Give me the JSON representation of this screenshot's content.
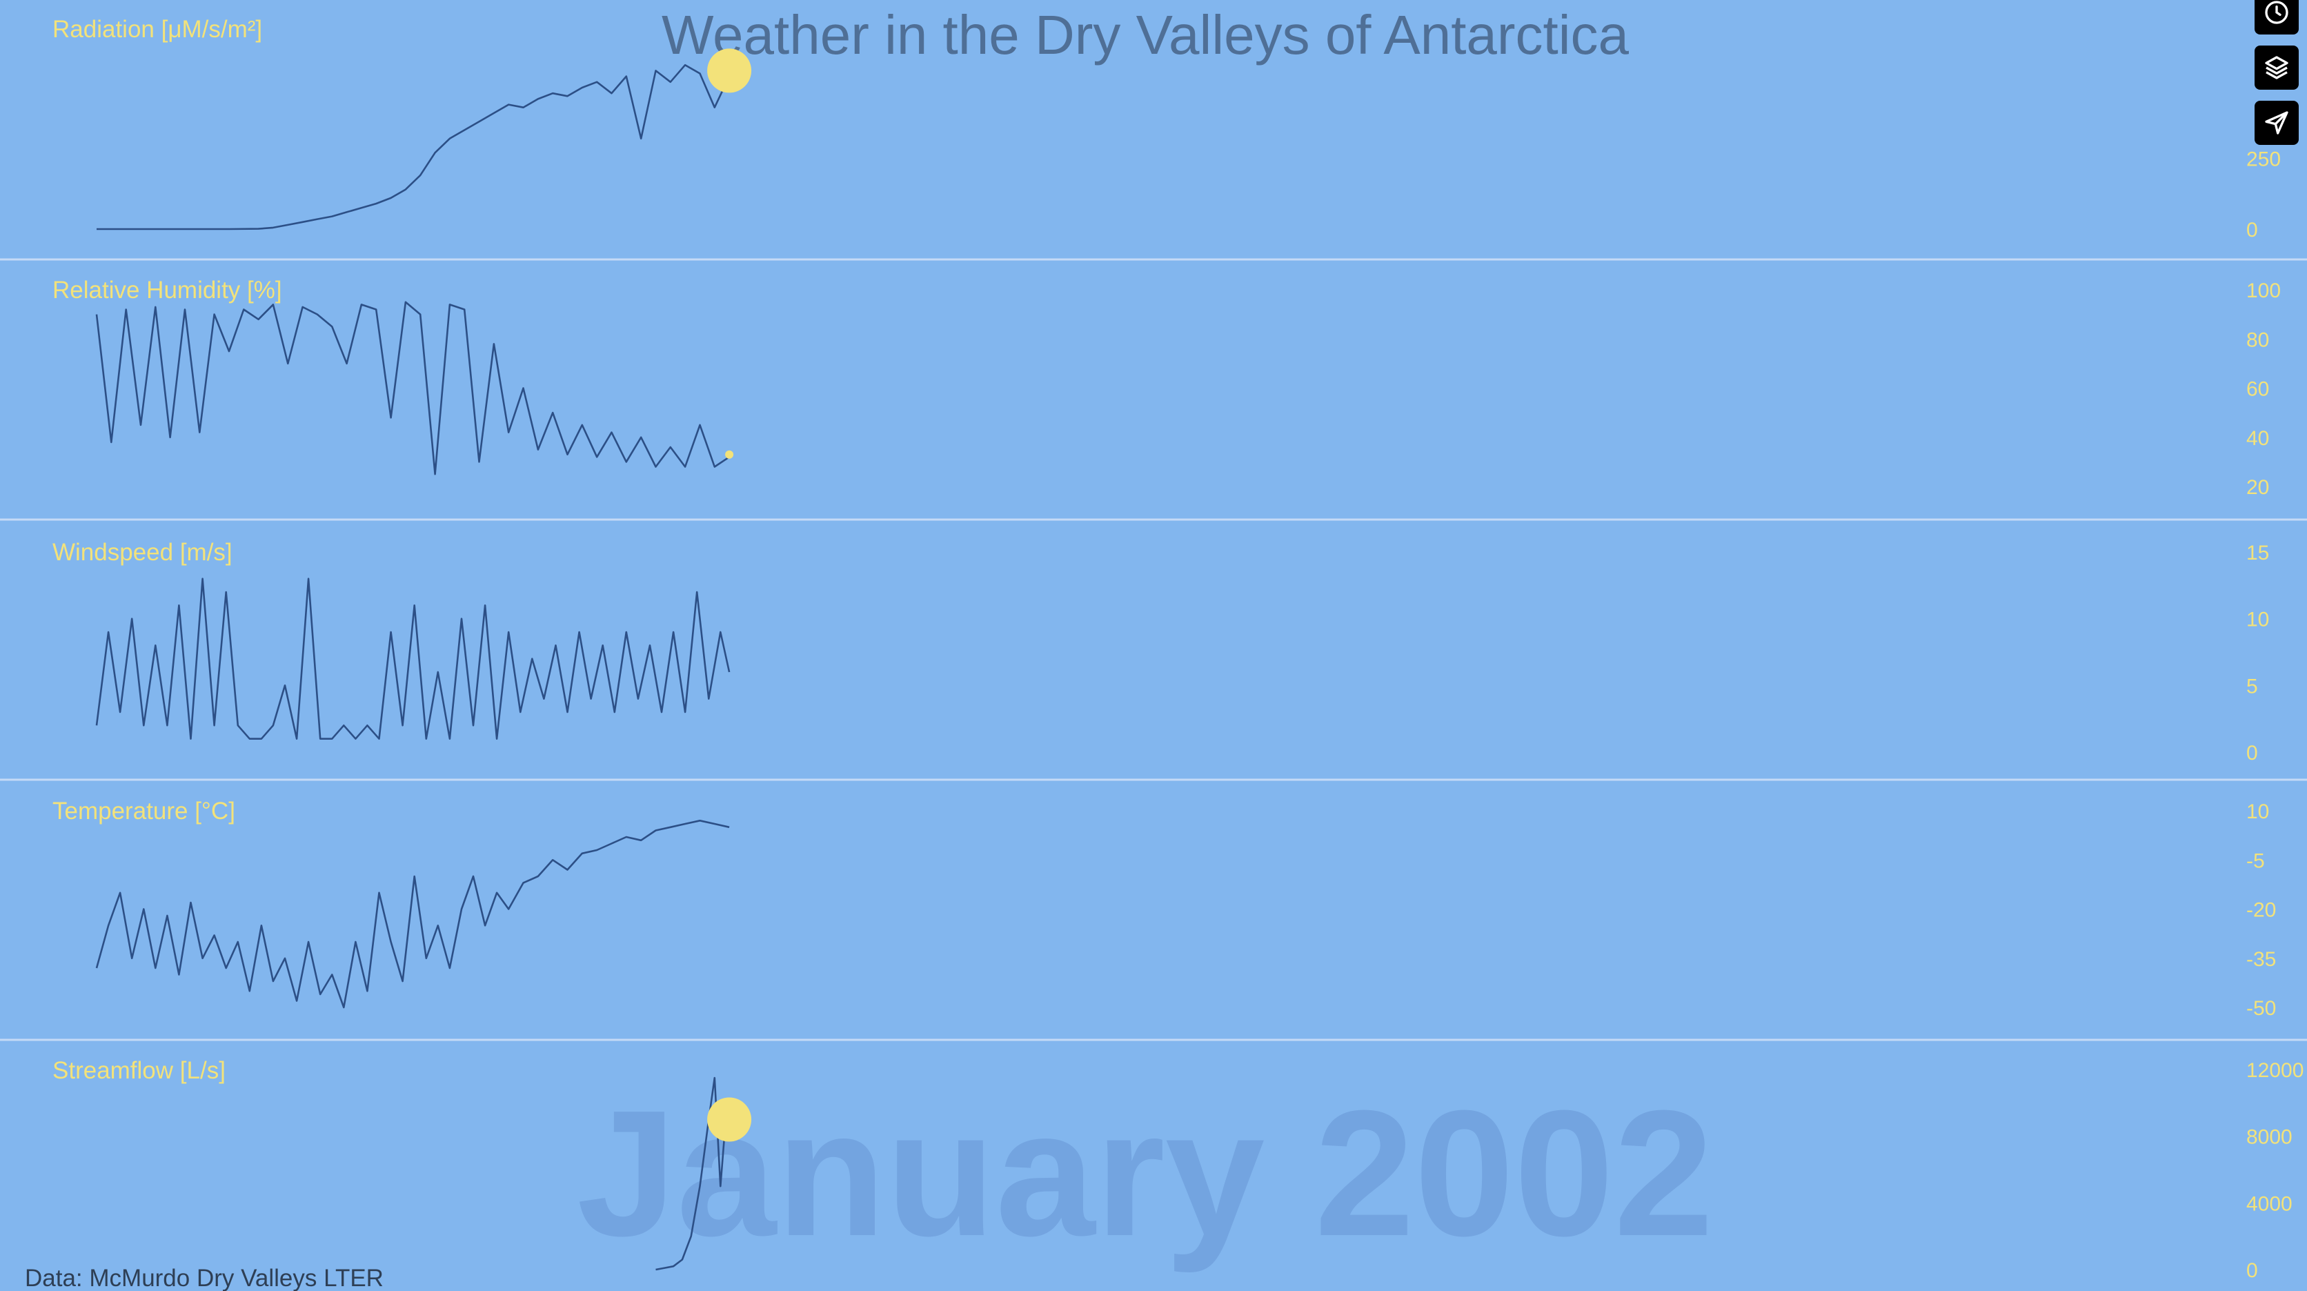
{
  "title": "Weather in the Dry Valleys of Antarctica",
  "current_period": "January 2002",
  "credit": "Data: McMurdo Dry Valleys LTER",
  "colors": {
    "background": "#82b6ee",
    "line": "#2c4f86",
    "accent": "#f3e27a",
    "title": "#4f6f96"
  },
  "controls": [
    {
      "name": "clock-icon"
    },
    {
      "name": "layers-icon"
    },
    {
      "name": "share-icon"
    }
  ],
  "chart_data": [
    {
      "type": "line",
      "title": "Radiation [μM/s/m²]",
      "yticks": [
        0,
        250
      ],
      "ylim": [
        0,
        600
      ],
      "x": [
        0,
        30,
        60,
        90,
        110,
        120,
        130,
        140,
        150,
        160,
        170,
        180,
        190,
        200,
        210,
        220,
        230,
        240,
        250,
        260,
        270,
        280,
        290,
        300,
        310,
        320,
        330,
        340,
        350,
        360,
        370,
        380,
        390,
        400,
        410,
        420,
        430
      ],
      "values": [
        0,
        0,
        0,
        0,
        1,
        5,
        15,
        25,
        35,
        45,
        60,
        75,
        90,
        110,
        140,
        190,
        270,
        320,
        350,
        380,
        410,
        440,
        430,
        460,
        480,
        470,
        500,
        520,
        480,
        540,
        320,
        560,
        520,
        580,
        550,
        430,
        540
      ],
      "marker_value": 560,
      "xlim": [
        0,
        1430
      ]
    },
    {
      "type": "line",
      "title": "Relative Humidity [%]",
      "yticks": [
        20,
        40,
        60,
        80,
        100
      ],
      "ylim": [
        20,
        100
      ],
      "x": [
        0,
        10,
        20,
        30,
        40,
        50,
        60,
        70,
        80,
        90,
        100,
        110,
        120,
        130,
        140,
        150,
        160,
        170,
        180,
        190,
        200,
        210,
        220,
        230,
        240,
        250,
        260,
        270,
        280,
        290,
        300,
        310,
        320,
        330,
        340,
        350,
        360,
        370,
        380,
        390,
        400,
        410,
        420,
        430
      ],
      "values": [
        90,
        38,
        92,
        45,
        93,
        40,
        92,
        42,
        90,
        75,
        92,
        88,
        94,
        70,
        93,
        90,
        85,
        70,
        94,
        92,
        48,
        95,
        90,
        25,
        94,
        92,
        30,
        78,
        42,
        60,
        35,
        50,
        33,
        45,
        32,
        42,
        30,
        40,
        28,
        36,
        28,
        45,
        28,
        32
      ],
      "marker_value": 33,
      "xlim": [
        0,
        1430
      ]
    },
    {
      "type": "line",
      "title": "Windspeed [m/s]",
      "yticks": [
        0,
        5,
        10,
        15
      ],
      "ylim": [
        0,
        15
      ],
      "x": [
        0,
        8,
        16,
        24,
        32,
        40,
        48,
        56,
        64,
        72,
        80,
        88,
        96,
        104,
        112,
        120,
        128,
        136,
        144,
        152,
        160,
        168,
        176,
        184,
        192,
        200,
        208,
        216,
        224,
        232,
        240,
        248,
        256,
        264,
        272,
        280,
        288,
        296,
        304,
        312,
        320,
        328,
        336,
        344,
        352,
        360,
        368,
        376,
        384,
        392,
        400,
        408,
        416,
        424,
        430
      ],
      "values": [
        2,
        9,
        3,
        10,
        2,
        8,
        2,
        11,
        1,
        13,
        2,
        12,
        2,
        1,
        1,
        2,
        5,
        1,
        13,
        1,
        1,
        2,
        1,
        2,
        1,
        9,
        2,
        11,
        1,
        6,
        1,
        10,
        2,
        11,
        1,
        9,
        3,
        7,
        4,
        8,
        3,
        9,
        4,
        8,
        3,
        9,
        4,
        8,
        3,
        9,
        3,
        12,
        4,
        9,
        6
      ],
      "xlim": [
        0,
        1430
      ]
    },
    {
      "type": "line",
      "title": "Temperature [°C]",
      "yticks": [
        -50,
        -35,
        -20,
        -5,
        10
      ],
      "ylim": [
        -50,
        10
      ],
      "x": [
        0,
        8,
        16,
        24,
        32,
        40,
        48,
        56,
        64,
        72,
        80,
        88,
        96,
        104,
        112,
        120,
        128,
        136,
        144,
        152,
        160,
        168,
        176,
        184,
        192,
        200,
        208,
        216,
        224,
        232,
        240,
        248,
        256,
        264,
        272,
        280,
        290,
        300,
        310,
        320,
        330,
        340,
        350,
        360,
        370,
        380,
        390,
        400,
        410,
        420,
        430
      ],
      "values": [
        -38,
        -25,
        -15,
        -35,
        -20,
        -38,
        -22,
        -40,
        -18,
        -35,
        -28,
        -38,
        -30,
        -45,
        -25,
        -42,
        -35,
        -48,
        -30,
        -46,
        -40,
        -50,
        -30,
        -45,
        -15,
        -30,
        -42,
        -10,
        -35,
        -25,
        -38,
        -20,
        -10,
        -25,
        -15,
        -20,
        -12,
        -10,
        -5,
        -8,
        -3,
        -2,
        0,
        2,
        1,
        4,
        5,
        6,
        7,
        6,
        5
      ],
      "xlim": [
        0,
        1430
      ]
    },
    {
      "type": "line",
      "title": "Streamflow [L/s]",
      "yticks": [
        0,
        4000,
        8000,
        12000
      ],
      "ylim": [
        0,
        12000
      ],
      "x": [
        0,
        6,
        12,
        18,
        24,
        30,
        36,
        40,
        44,
        48,
        50
      ],
      "values": [
        0,
        100,
        200,
        600,
        2000,
        5000,
        9000,
        11500,
        5000,
        9500,
        9000
      ],
      "x_offset": 380,
      "marker_value": 9000,
      "xlim": [
        0,
        1430
      ]
    }
  ]
}
